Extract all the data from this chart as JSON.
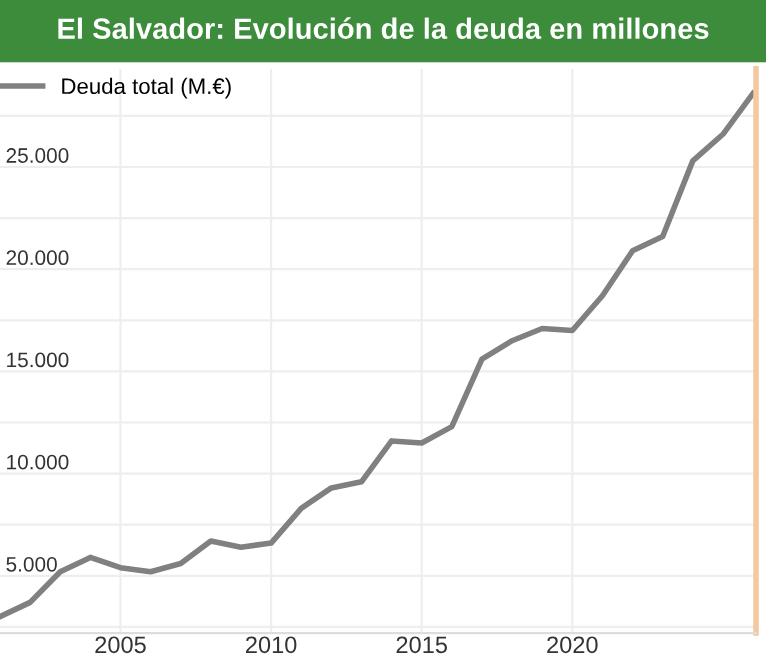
{
  "chart_data": {
    "type": "line",
    "title": "El Salvador: Evolución de la deuda en millones",
    "x": [
      2001,
      2002,
      2003,
      2004,
      2005,
      2006,
      2007,
      2008,
      2009,
      2010,
      2011,
      2012,
      2013,
      2014,
      2015,
      2016,
      2017,
      2018,
      2019,
      2020,
      2021,
      2022,
      2023,
      2024,
      2025,
      2026
    ],
    "series": [
      {
        "name": "Deuda total (M.€)",
        "color": "#808080",
        "values": [
          3000,
          3700,
          5200,
          5900,
          5400,
          5200,
          5600,
          6700,
          6400,
          6600,
          8300,
          9300,
          9600,
          11600,
          11500,
          12300,
          15600,
          16500,
          17100,
          17000,
          18700,
          20900,
          21600,
          25300,
          26600,
          28600
        ]
      }
    ],
    "xlim": [
      2001,
      2026.1
    ],
    "xticks": [
      2005,
      2010,
      2015,
      2020
    ],
    "ylim": [
      2200,
      29800
    ],
    "yticks": [
      {
        "value": 2500,
        "label": null
      },
      {
        "value": 5000,
        "label": "5.000"
      },
      {
        "value": 7500,
        "label": null
      },
      {
        "value": 10000,
        "label": "10.000"
      },
      {
        "value": 12500,
        "label": null
      },
      {
        "value": 15000,
        "label": "15.000"
      },
      {
        "value": 17500,
        "label": null
      },
      {
        "value": 20000,
        "label": "20.000"
      },
      {
        "value": 22500,
        "label": null
      },
      {
        "value": 25000,
        "label": "25.000"
      },
      {
        "value": 27500,
        "label": null
      }
    ],
    "grid": true,
    "legend": "top left",
    "marker": "none",
    "line_style": "solid"
  }
}
